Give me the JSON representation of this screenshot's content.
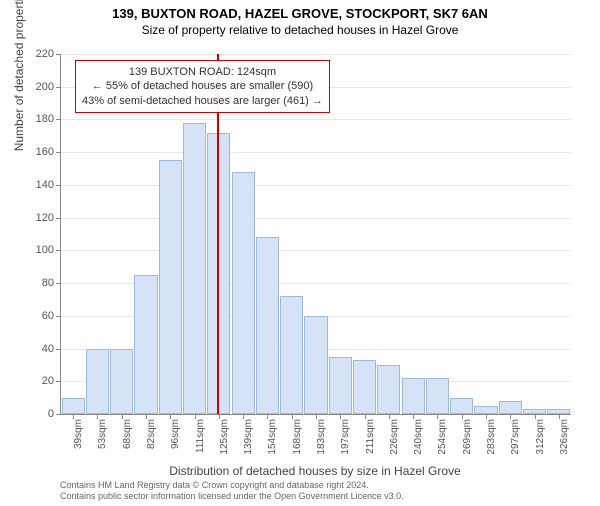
{
  "title1": "139, BUXTON ROAD, HAZEL GROVE, STOCKPORT, SK7 6AN",
  "title2": "Size of property relative to detached houses in Hazel Grove",
  "ylabel": "Number of detached properties",
  "xlabel": "Distribution of detached houses by size in Hazel Grove",
  "chart": {
    "type": "bar",
    "ylim": [
      0,
      220
    ],
    "ytick_step": 20,
    "bar_fill": "#d6e2f5",
    "bar_stroke": "#9fb8de",
    "background_color": "#ffffff",
    "grid_color": "#e8e8e8",
    "categories": [
      "39sqm",
      "53sqm",
      "68sqm",
      "82sqm",
      "96sqm",
      "111sqm",
      "125sqm",
      "139sqm",
      "154sqm",
      "168sqm",
      "183sqm",
      "197sqm",
      "211sqm",
      "226sqm",
      "240sqm",
      "254sqm",
      "269sqm",
      "283sqm",
      "297sqm",
      "312sqm",
      "326sqm"
    ],
    "values": [
      10,
      40,
      40,
      85,
      155,
      178,
      172,
      148,
      108,
      72,
      60,
      35,
      33,
      30,
      22,
      22,
      10,
      5,
      8,
      3,
      3
    ],
    "marker_value": 124,
    "marker_color": "#cc0000",
    "annotation_lines": [
      "139 BUXTON ROAD: 124sqm",
      "← 55% of detached houses are smaller (590)",
      "43% of semi-detached houses are larger (461) →"
    ]
  },
  "footer_line1": "Contains HM Land Registry data © Crown copyright and database right 2024.",
  "footer_line2": "Contains public sector information licensed under the Open Government Licence v3.0."
}
